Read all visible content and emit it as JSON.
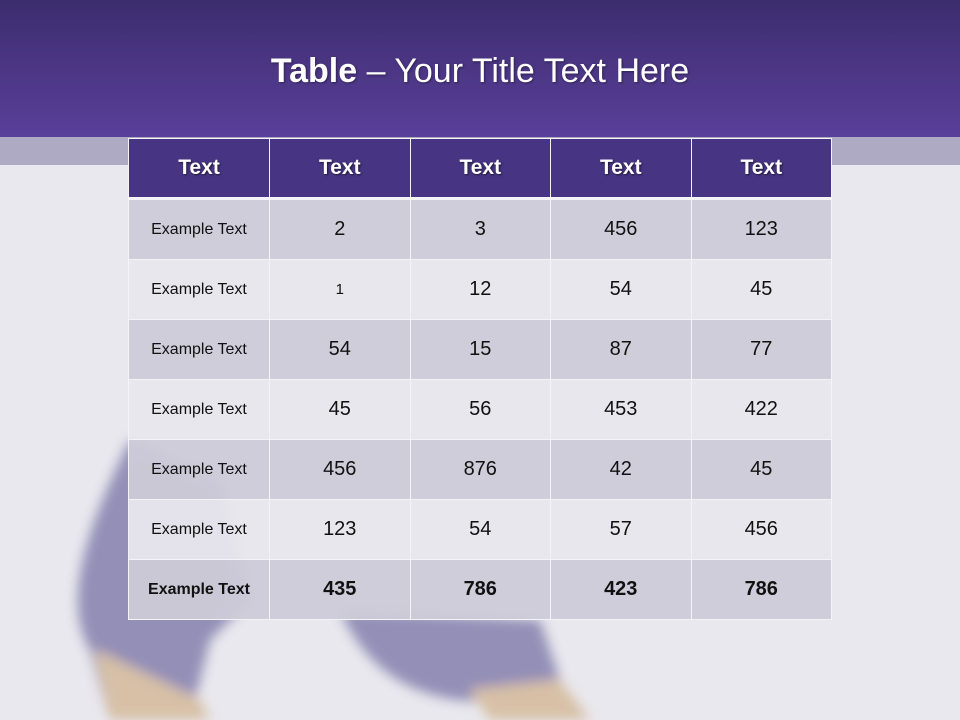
{
  "slide": {
    "title_bold": "Table",
    "title_rest": " – Your Title Text Here"
  },
  "table": {
    "headers": [
      "Text",
      "Text",
      "Text",
      "Text",
      "Text"
    ],
    "rows": [
      [
        "Example Text",
        "2",
        "3",
        "456",
        "123"
      ],
      [
        "Example Text",
        "1",
        "12",
        "54",
        "45"
      ],
      [
        "Example Text",
        "54",
        "15",
        "87",
        "77"
      ],
      [
        "Example Text",
        "45",
        "56",
        "453",
        "422"
      ],
      [
        "Example Text",
        "456",
        "876",
        "42",
        "45"
      ],
      [
        "Example Text",
        "123",
        "54",
        "57",
        "456"
      ],
      [
        "Example Text",
        "435",
        "786",
        "423",
        "786"
      ]
    ]
  },
  "colors": {
    "banner": "#4a3588",
    "header": "#473583",
    "row_dark": "#cdcbd8",
    "row_light": "#e8e7ed"
  }
}
